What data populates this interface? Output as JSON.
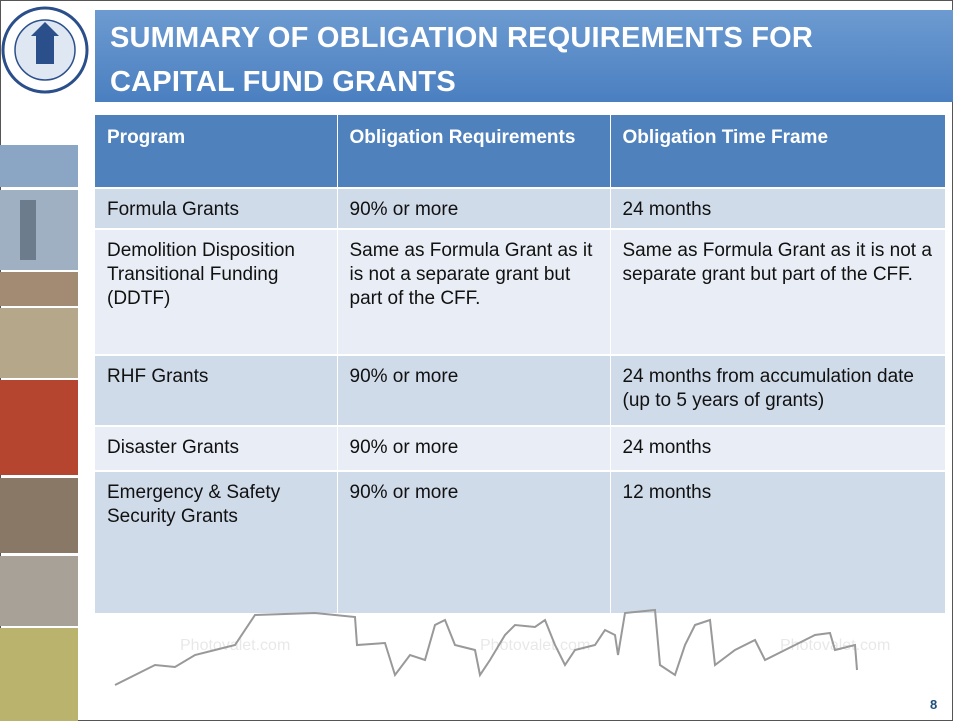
{
  "header": {
    "title": "SUMMARY OF OBLIGATION REQUIREMENTS FOR CAPITAL FUND GRANTS"
  },
  "table": {
    "columns": [
      "Program",
      "Obligation Requirements",
      "Obligation Time Frame"
    ],
    "rows": [
      [
        "Formula Grants",
        "90% or more",
        "24 months"
      ],
      [
        "Demolition Disposition Transitional Funding (DDTF)",
        "Same as Formula Grant as it is not a separate grant but part of the CFF.",
        "Same as Formula Grant as it is not a separate grant but part of the CFF."
      ],
      [
        "RHF Grants",
        "90% or more",
        "24 months from accumulation date (up to 5 years of grants)"
      ],
      [
        "Disaster Grants",
        "90% or more",
        "24 months"
      ],
      [
        "Emergency & Safety Security Grants",
        "90% or more",
        "12 months"
      ]
    ]
  },
  "watermarks": [
    "Photovalet.com",
    "Photovalet.com",
    "Photovalet.com"
  ],
  "page_number": "8"
}
